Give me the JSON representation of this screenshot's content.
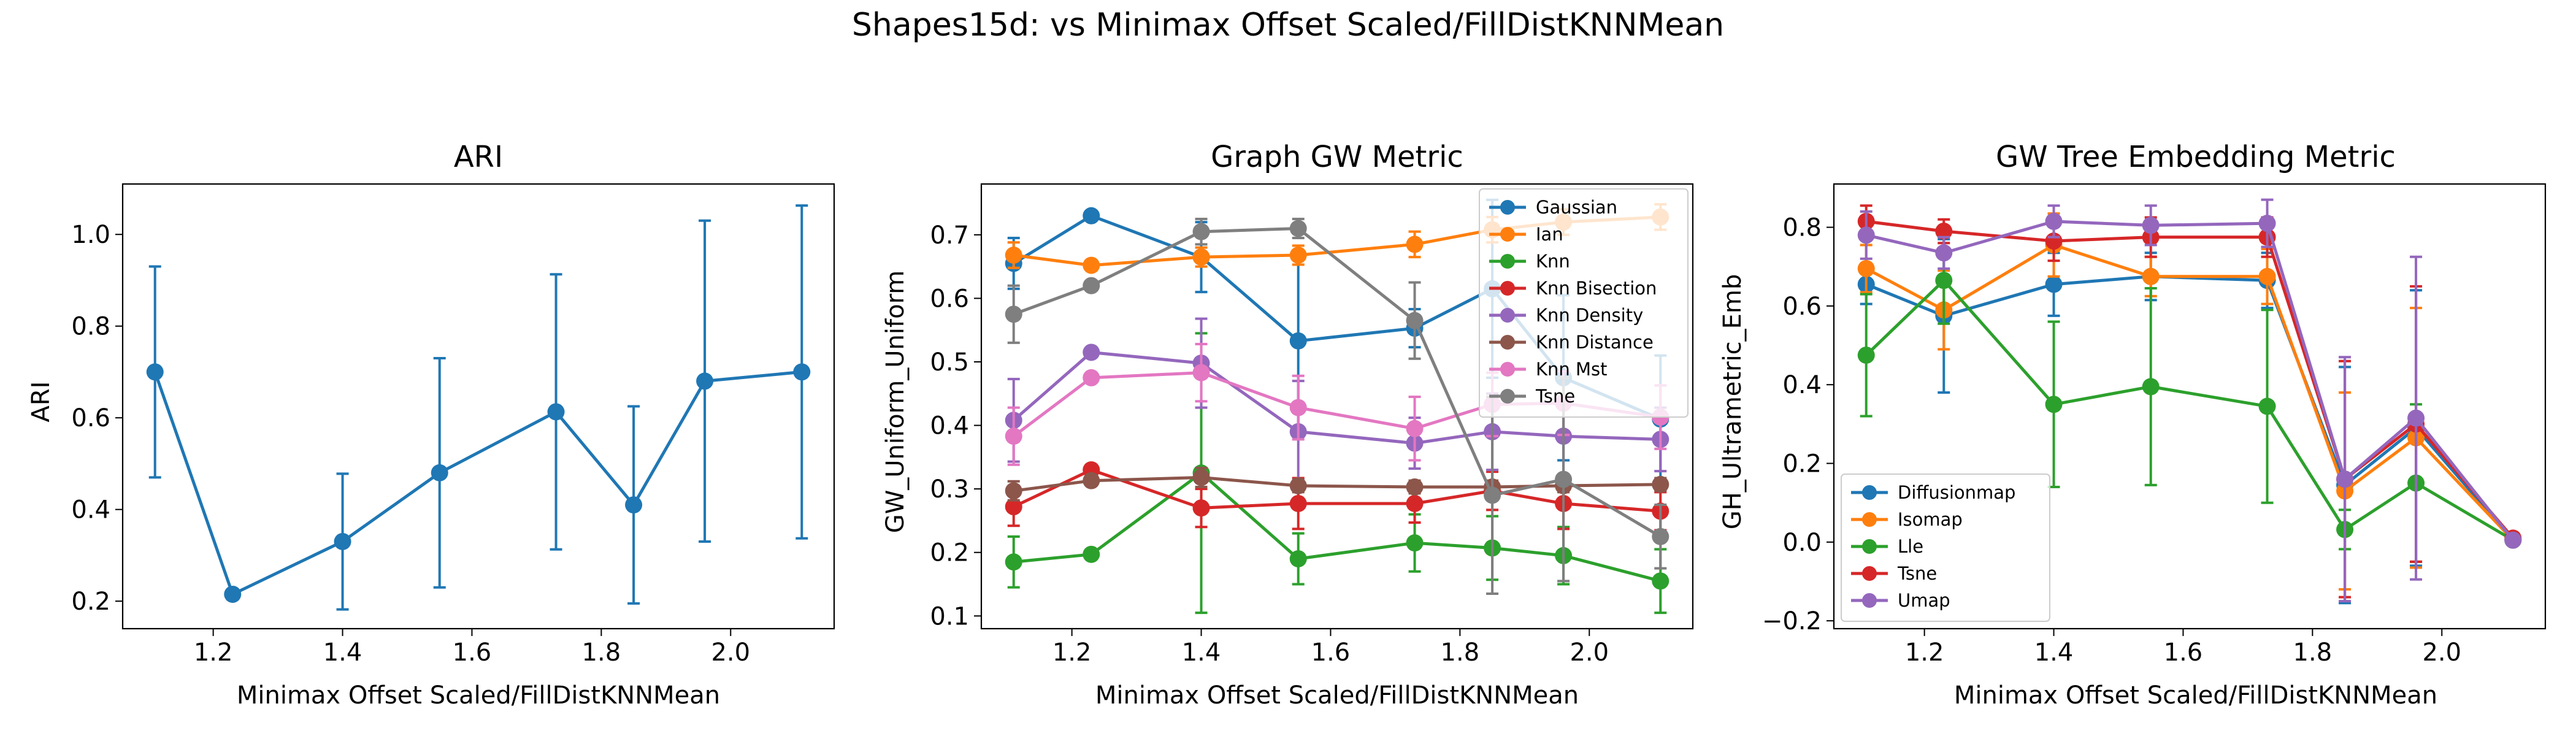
{
  "figure": {
    "title": "Shapes15d: vs Minimax Offset Scaled/FillDistKNNMean"
  },
  "chart_data": [
    {
      "type": "line",
      "title": "ARI",
      "xlabel": "Minimax Offset Scaled/FillDistKNNMean",
      "ylabel": "ARI",
      "xlim": [
        1.06,
        2.16
      ],
      "ylim": [
        0.14,
        1.11
      ],
      "xticks": [
        1.2,
        1.4,
        1.6,
        1.8,
        2.0
      ],
      "xticklabels": [
        "1.2",
        "1.4",
        "1.6",
        "1.8",
        "2.0"
      ],
      "yticks": [
        0.2,
        0.4,
        0.6,
        0.8,
        1.0
      ],
      "yticklabels": [
        "0.2",
        "0.4",
        "0.6",
        "0.8",
        "1.0"
      ],
      "x": [
        1.11,
        1.23,
        1.4,
        1.55,
        1.73,
        1.85,
        1.96,
        2.11
      ],
      "legend": null,
      "series": [
        {
          "name": "ARI",
          "color": "#1f77b4",
          "values": [
            0.7,
            0.215,
            0.33,
            0.48,
            0.613,
            0.41,
            0.68,
            0.7
          ],
          "errors": [
            0.23,
            0.0,
            0.148,
            0.25,
            0.3,
            0.215,
            0.35,
            0.363
          ]
        }
      ]
    },
    {
      "type": "line",
      "title": "Graph GW Metric",
      "xlabel": "Minimax Offset Scaled/FillDistKNNMean",
      "ylabel": "GW_Uniform_Uniform",
      "xlim": [
        1.06,
        2.16
      ],
      "ylim": [
        0.08,
        0.78
      ],
      "xticks": [
        1.2,
        1.4,
        1.6,
        1.8,
        2.0
      ],
      "xticklabels": [
        "1.2",
        "1.4",
        "1.6",
        "1.8",
        "2.0"
      ],
      "yticks": [
        0.1,
        0.2,
        0.3,
        0.4,
        0.5,
        0.6,
        0.7
      ],
      "yticklabels": [
        "0.1",
        "0.2",
        "0.3",
        "0.4",
        "0.5",
        "0.6",
        "0.7"
      ],
      "x": [
        1.11,
        1.23,
        1.4,
        1.55,
        1.73,
        1.85,
        1.96,
        2.11
      ],
      "legend": "top-right",
      "series": [
        {
          "name": "Gaussian",
          "color": "#1f77b4",
          "values": [
            0.655,
            0.73,
            0.665,
            0.533,
            0.553,
            0.615,
            0.475,
            0.41
          ],
          "errors": [
            0.04,
            0.0,
            0.055,
            0.14,
            0.03,
            0.14,
            0.13,
            0.1
          ]
        },
        {
          "name": "Ian",
          "color": "#ff7f0e",
          "values": [
            0.668,
            0.652,
            0.665,
            0.668,
            0.685,
            0.708,
            0.72,
            0.728
          ],
          "errors": [
            0.02,
            0.0,
            0.015,
            0.015,
            0.02,
            0.02,
            0.02,
            0.02
          ]
        },
        {
          "name": "Knn",
          "color": "#2ca02c",
          "values": [
            0.185,
            0.197,
            0.325,
            0.19,
            0.215,
            0.207,
            0.195,
            0.155
          ],
          "errors": [
            0.04,
            0.0,
            0.22,
            0.04,
            0.045,
            0.05,
            0.045,
            0.05
          ]
        },
        {
          "name": "Knn Bisection",
          "color": "#d62728",
          "values": [
            0.272,
            0.33,
            0.27,
            0.277,
            0.277,
            0.297,
            0.277,
            0.265
          ],
          "errors": [
            0.03,
            0.0,
            0.03,
            0.04,
            0.03,
            0.03,
            0.04,
            0.03
          ]
        },
        {
          "name": "Knn Density",
          "color": "#9467bd",
          "values": [
            0.408,
            0.515,
            0.498,
            0.39,
            0.372,
            0.39,
            0.383,
            0.378
          ],
          "errors": [
            0.065,
            0.0,
            0.07,
            0.08,
            0.04,
            0.06,
            0.06,
            0.05
          ]
        },
        {
          "name": "Knn Distance",
          "color": "#8c564b",
          "values": [
            0.297,
            0.313,
            0.318,
            0.305,
            0.303,
            0.303,
            0.305,
            0.307
          ],
          "errors": [
            0.015,
            0.0,
            0.015,
            0.01,
            0.01,
            0.01,
            0.01,
            0.01
          ]
        },
        {
          "name": "Knn Mst",
          "color": "#e377c2",
          "values": [
            0.383,
            0.475,
            0.483,
            0.428,
            0.395,
            0.433,
            0.435,
            0.413
          ],
          "errors": [
            0.045,
            0.0,
            0.045,
            0.05,
            0.05,
            0.05,
            0.05,
            0.05
          ]
        },
        {
          "name": "Tsne",
          "color": "#7f7f7f",
          "values": [
            0.575,
            0.62,
            0.705,
            0.71,
            0.565,
            0.29,
            0.315,
            0.225
          ],
          "errors": [
            0.045,
            0.0,
            0.02,
            0.015,
            0.06,
            0.155,
            0.16,
            0.05
          ]
        }
      ]
    },
    {
      "type": "line",
      "title": "GW Tree Embedding Metric",
      "xlabel": "Minimax Offset Scaled/FillDistKNNMean",
      "ylabel": "GH_Ultrametric_Emb",
      "xlim": [
        1.06,
        2.16
      ],
      "ylim": [
        -0.22,
        0.91
      ],
      "xticks": [
        1.2,
        1.4,
        1.6,
        1.8,
        2.0
      ],
      "xticklabels": [
        "1.2",
        "1.4",
        "1.6",
        "1.8",
        "2.0"
      ],
      "yticks": [
        -0.2,
        0.0,
        0.2,
        0.4,
        0.6,
        0.8
      ],
      "yticklabels": [
        "−0.2",
        "0.0",
        "0.2",
        "0.4",
        "0.6",
        "0.8"
      ],
      "x": [
        1.11,
        1.23,
        1.4,
        1.55,
        1.73,
        1.85,
        1.96,
        2.11
      ],
      "legend": "bottom-left",
      "series": [
        {
          "name": "Diffusionmap",
          "color": "#1f77b4",
          "values": [
            0.655,
            0.575,
            0.655,
            0.675,
            0.665,
            0.145,
            0.29,
            0.005
          ],
          "errors": [
            0.05,
            0.195,
            0.08,
            0.06,
            0.07,
            0.3,
            0.35,
            0.01
          ]
        },
        {
          "name": "Isomap",
          "color": "#ff7f0e",
          "values": [
            0.695,
            0.59,
            0.755,
            0.675,
            0.675,
            0.13,
            0.265,
            0.005
          ],
          "errors": [
            0.06,
            0.1,
            0.08,
            0.05,
            0.07,
            0.25,
            0.33,
            0.01
          ]
        },
        {
          "name": "Lle",
          "color": "#2ca02c",
          "values": [
            0.475,
            0.665,
            0.35,
            0.395,
            0.345,
            0.032,
            0.15,
            0.005
          ],
          "errors": [
            0.155,
            0.11,
            0.21,
            0.25,
            0.245,
            0.05,
            0.2,
            0.01
          ]
        },
        {
          "name": "Tsne",
          "color": "#d62728",
          "values": [
            0.815,
            0.79,
            0.765,
            0.775,
            0.775,
            0.16,
            0.3,
            0.01
          ],
          "errors": [
            0.04,
            0.03,
            0.05,
            0.05,
            0.05,
            0.3,
            0.35,
            0.01
          ]
        },
        {
          "name": "Umap",
          "color": "#9467bd",
          "values": [
            0.78,
            0.735,
            0.815,
            0.805,
            0.81,
            0.16,
            0.315,
            0.005
          ],
          "errors": [
            0.06,
            0.04,
            0.04,
            0.05,
            0.06,
            0.31,
            0.41,
            0.01
          ]
        }
      ]
    }
  ]
}
